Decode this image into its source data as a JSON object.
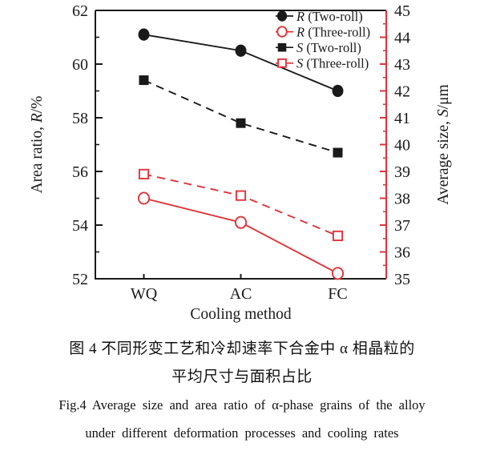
{
  "figure": {
    "caption_zh_line1": "图 4  不同形变工艺和冷却速率下合金中 α 相晶粒的",
    "caption_zh_line2": "平均尺寸与面积占比",
    "caption_en_line1": "Fig.4  Average size and area ratio of α-phase grains of the alloy",
    "caption_en_line2": "under different deformation processes and cooling rates"
  },
  "chart_data": {
    "type": "line",
    "categories": [
      "WQ",
      "AC",
      "FC"
    ],
    "x_axis": {
      "label": "Cooling method"
    },
    "left_axis": {
      "label_pre": "Area ratio, ",
      "label_italic": "R",
      "label_post": "/%",
      "min": 52,
      "max": 62,
      "ticks": [
        52,
        54,
        56,
        58,
        60,
        62
      ],
      "minor_ticks": [
        53,
        55,
        57,
        59,
        61
      ]
    },
    "right_axis": {
      "label_pre": "Average size, ",
      "label_italic": "S",
      "label_post": "/μm",
      "min": 35,
      "max": 45,
      "ticks": [
        35,
        36,
        37,
        38,
        39,
        40,
        41,
        42,
        43,
        44,
        45
      ],
      "minor_step": 0.5
    },
    "series": [
      {
        "name_italic": "R",
        "name_rest": " (Two-roll)",
        "axis": "left",
        "values": [
          61.1,
          60.5,
          59.0
        ],
        "color": "#1a1a1a",
        "marker": "circle-filled",
        "line": "solid"
      },
      {
        "name_italic": "R",
        "name_rest": " (Three-roll)",
        "axis": "left",
        "values": [
          55.0,
          54.1,
          52.2
        ],
        "color": "#e23338",
        "marker": "circle-open",
        "line": "solid"
      },
      {
        "name_italic": "S",
        "name_rest": " (Two-roll)",
        "axis": "right",
        "values": [
          42.4,
          40.8,
          39.7
        ],
        "color": "#1a1a1a",
        "marker": "square-filled",
        "line": "dashed"
      },
      {
        "name_italic": "S",
        "name_rest": " (Three-roll)",
        "axis": "right",
        "values": [
          38.9,
          38.1,
          36.6
        ],
        "color": "#e23338",
        "marker": "square-open",
        "line": "dashed"
      }
    ],
    "legend": {
      "position": "top-right-inside"
    },
    "colors": {
      "black": "#1a1a1a",
      "red": "#e23338",
      "background": "#ffffff"
    }
  }
}
